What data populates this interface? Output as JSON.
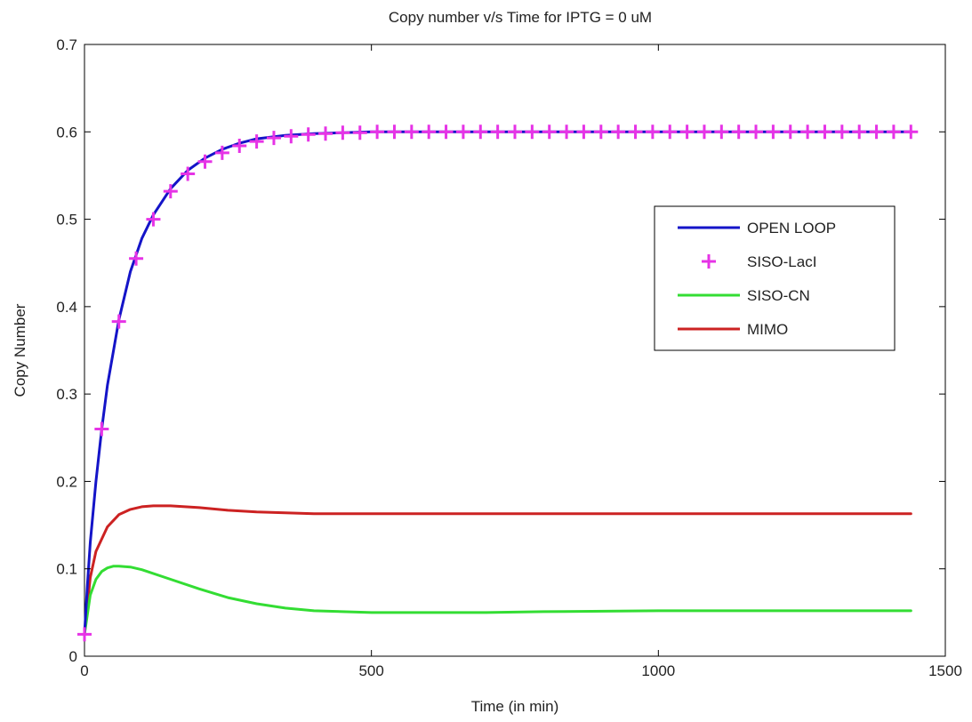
{
  "chart_data": {
    "type": "line",
    "title": "Copy number v/s Time for IPTG = 0 uM",
    "xlabel": "Time (in min)",
    "ylabel": "Copy Number",
    "xlim": [
      0,
      1500
    ],
    "ylim": [
      0,
      0.7
    ],
    "xticks": [
      0,
      500,
      1000,
      1500
    ],
    "yticks": [
      0,
      0.1,
      0.2,
      0.3,
      0.4,
      0.5,
      0.6,
      0.7
    ],
    "xtick_labels": [
      "0",
      "500",
      "1000",
      "1500"
    ],
    "ytick_labels": [
      "0",
      "0.1",
      "0.2",
      "0.3",
      "0.4",
      "0.5",
      "0.6",
      "0.7"
    ],
    "grid": false,
    "legend_position": "right",
    "series": [
      {
        "name": "OPEN LOOP",
        "style": "line",
        "color": "#1414c8",
        "x": [
          0,
          5,
          10,
          20,
          30,
          40,
          60,
          80,
          100,
          120,
          150,
          180,
          210,
          240,
          270,
          300,
          350,
          400,
          450,
          500,
          600,
          700,
          800,
          900,
          1000,
          1100,
          1200,
          1300,
          1440
        ],
        "y": [
          0.025,
          0.08,
          0.13,
          0.2,
          0.26,
          0.31,
          0.385,
          0.44,
          0.478,
          0.505,
          0.535,
          0.556,
          0.57,
          0.58,
          0.587,
          0.592,
          0.596,
          0.598,
          0.599,
          0.6,
          0.6,
          0.6,
          0.6,
          0.6,
          0.6,
          0.6,
          0.6,
          0.6,
          0.6
        ]
      },
      {
        "name": "SISO-LacI",
        "style": "marker-plus",
        "color": "#e633e6",
        "x": [
          0,
          30,
          60,
          90,
          120,
          150,
          180,
          210,
          240,
          270,
          300,
          330,
          360,
          390,
          420,
          450,
          480,
          510,
          540,
          570,
          600,
          630,
          660,
          690,
          720,
          750,
          780,
          810,
          840,
          870,
          900,
          930,
          960,
          990,
          1020,
          1050,
          1080,
          1110,
          1140,
          1170,
          1200,
          1230,
          1260,
          1290,
          1320,
          1350,
          1380,
          1410,
          1440
        ],
        "y": [
          0.025,
          0.26,
          0.383,
          0.455,
          0.5,
          0.532,
          0.552,
          0.566,
          0.576,
          0.584,
          0.589,
          0.593,
          0.595,
          0.597,
          0.598,
          0.599,
          0.599,
          0.6,
          0.6,
          0.6,
          0.6,
          0.6,
          0.6,
          0.6,
          0.6,
          0.6,
          0.6,
          0.6,
          0.6,
          0.6,
          0.6,
          0.6,
          0.6,
          0.6,
          0.6,
          0.6,
          0.6,
          0.6,
          0.6,
          0.6,
          0.6,
          0.6,
          0.6,
          0.6,
          0.6,
          0.6,
          0.6,
          0.6,
          0.6
        ]
      },
      {
        "name": "SISO-CN",
        "style": "line",
        "color": "#33dd33",
        "x": [
          0,
          10,
          20,
          30,
          40,
          50,
          60,
          80,
          100,
          150,
          200,
          250,
          300,
          350,
          400,
          500,
          600,
          700,
          800,
          1000,
          1200,
          1440
        ],
        "y": [
          0.025,
          0.07,
          0.088,
          0.097,
          0.101,
          0.103,
          0.103,
          0.102,
          0.099,
          0.088,
          0.077,
          0.067,
          0.06,
          0.055,
          0.052,
          0.05,
          0.05,
          0.05,
          0.051,
          0.052,
          0.052,
          0.052
        ]
      },
      {
        "name": "MIMO",
        "style": "line",
        "color": "#cc2222",
        "x": [
          0,
          10,
          20,
          40,
          60,
          80,
          100,
          120,
          150,
          200,
          250,
          300,
          350,
          400,
          500,
          600,
          800,
          1000,
          1200,
          1440
        ],
        "y": [
          0.025,
          0.09,
          0.12,
          0.148,
          0.162,
          0.168,
          0.171,
          0.172,
          0.172,
          0.17,
          0.167,
          0.165,
          0.164,
          0.163,
          0.163,
          0.163,
          0.163,
          0.163,
          0.163,
          0.163
        ]
      }
    ]
  }
}
